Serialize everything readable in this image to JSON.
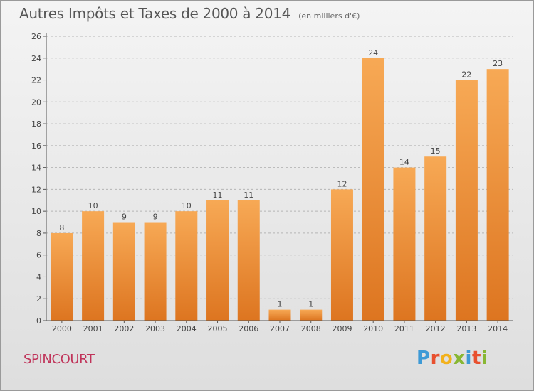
{
  "title": "Autres Impôts et Taxes de 2000 à 2014",
  "subtitle": "(en milliers d'€)",
  "city": "SPINCOURT",
  "brand": {
    "letters": [
      "P",
      "r",
      "o",
      "x",
      "i",
      "t",
      "i"
    ],
    "colors": [
      "#3d9ad6",
      "#e8502f",
      "#f2b11c",
      "#88b733",
      "#3d9ad6",
      "#e8502f",
      "#88b733"
    ]
  },
  "colors": {
    "bar_light": "#f7a955",
    "bar_dark": "#dd7520",
    "axis": "#555555",
    "grid": "#b5b5b5",
    "title": "#555555",
    "city": "#c0345a"
  },
  "chart_data": {
    "type": "bar",
    "categories": [
      "2000",
      "2001",
      "2002",
      "2003",
      "2004",
      "2005",
      "2006",
      "2007",
      "2008",
      "2009",
      "2010",
      "2011",
      "2012",
      "2013",
      "2014"
    ],
    "values": [
      8,
      10,
      9,
      9,
      10,
      11,
      11,
      1,
      1,
      12,
      24,
      14,
      15,
      22,
      23
    ],
    "ylim": [
      0,
      26
    ],
    "yticks": [
      0,
      2,
      4,
      6,
      8,
      10,
      12,
      14,
      16,
      18,
      20,
      22,
      24,
      26
    ],
    "grid": true,
    "legend": "none"
  }
}
